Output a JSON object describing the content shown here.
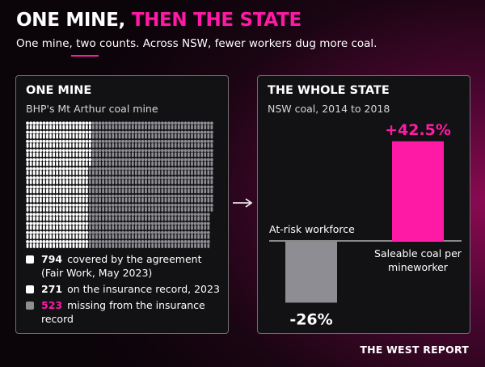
{
  "header": {
    "title_main": "ONE MINE,",
    "title_highlight": "THEN THE STATE",
    "subtitle": "One mine, two counts. Across NSW, fewer workers dug more coal."
  },
  "left_panel": {
    "title": "ONE MINE",
    "subtitle": "BHP's Mt Arthur coal mine",
    "legend": [
      {
        "value": "794",
        "label": "covered by the agreement (Fair Work, May 2023)",
        "color": "#ffffff"
      },
      {
        "value": "271",
        "label": "on the insurance record, 2023",
        "color": "#ffffff"
      },
      {
        "value": "523",
        "label": "missing from the insurance record",
        "color": "#8e8d93",
        "value_color": "pink"
      }
    ]
  },
  "right_panel": {
    "title": "THE WHOLE STATE",
    "subtitle": "NSW coal, 2014 to 2018"
  },
  "brand": "THE WEST REPORT",
  "colors": {
    "accent": "#ff1aa6",
    "gray": "#8e8d93",
    "white": "#ffffff"
  },
  "icons": {
    "figure": "person-icon",
    "arrow": "arrow-right-icon"
  },
  "chart_data": [
    {
      "type": "waffle",
      "unit": "person",
      "categories": [
        "on the insurance record, 2023",
        "missing from the insurance record"
      ],
      "values": [
        271,
        523
      ],
      "total": 794,
      "colors": [
        "#ffffff",
        "#8e8d93"
      ]
    },
    {
      "type": "bar",
      "categories": [
        "At-risk workforce",
        "Saleable coal per mineworker"
      ],
      "values": [
        -26,
        42.5
      ],
      "value_labels": [
        "-26%",
        "+42.5%"
      ],
      "colors": [
        "#8e8d93",
        "#ff1aa6"
      ],
      "baseline": 0
    }
  ]
}
